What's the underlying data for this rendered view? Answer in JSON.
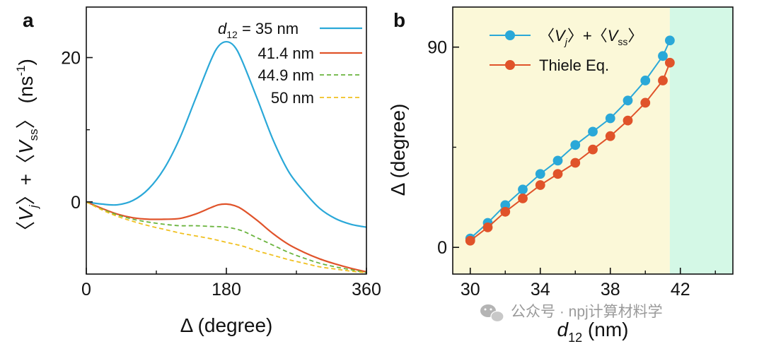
{
  "chart_data": [
    {
      "panel_label": "a",
      "type": "line",
      "xlabel": "Δ (degree)",
      "ylabel_parts": {
        "open": "〈",
        "v": "V",
        "j": "j",
        "mid": "〉+〈",
        "v2": "V",
        "ss": "ss",
        "close": "〉",
        "unit": " (ns",
        "exp": "-1",
        "end": ")"
      },
      "xlim": [
        0,
        360
      ],
      "ylim": [
        -10,
        27
      ],
      "xticks": [
        0,
        180,
        360
      ],
      "xtick_labels": [
        "0",
        "180",
        "360"
      ],
      "xminor": [
        90,
        270
      ],
      "yticks": [
        0,
        20
      ],
      "ytick_labels": [
        "0",
        "20"
      ],
      "yminor": [
        10
      ],
      "legend_prefix": "d",
      "legend_sub": "12",
      "legend_eq": " = 35 nm",
      "series": [
        {
          "name": "d12 = 35 nm",
          "label": "35 nm",
          "color": "#2aa8d8",
          "dash": "",
          "x": [
            0,
            20,
            40,
            60,
            80,
            100,
            120,
            140,
            160,
            170,
            180,
            190,
            200,
            220,
            240,
            260,
            280,
            300,
            320,
            340,
            360
          ],
          "y": [
            0,
            -0.3,
            -0.4,
            0.2,
            1.8,
            4.6,
            8.8,
            14.2,
            19.6,
            21.6,
            22.2,
            21.6,
            19.6,
            14.2,
            8.6,
            4.2,
            1.4,
            -0.9,
            -2.3,
            -3.1,
            -3.5
          ]
        },
        {
          "name": "41.4 nm",
          "label": "41.4 nm",
          "color": "#e0532a",
          "dash": "",
          "x": [
            0,
            20,
            40,
            60,
            80,
            100,
            120,
            140,
            160,
            170,
            180,
            190,
            200,
            220,
            240,
            260,
            280,
            300,
            320,
            340,
            360
          ],
          "y": [
            0,
            -0.9,
            -1.7,
            -2.2,
            -2.4,
            -2.4,
            -2.3,
            -1.7,
            -0.8,
            -0.4,
            -0.3,
            -0.5,
            -1.0,
            -2.6,
            -4.4,
            -5.9,
            -7.0,
            -7.9,
            -8.6,
            -9.2,
            -9.7
          ]
        },
        {
          "name": "44.9 nm",
          "label": "44.9 nm",
          "color": "#6ab43e",
          "dash": "6,4",
          "x": [
            0,
            20,
            40,
            60,
            80,
            100,
            120,
            140,
            160,
            180,
            200,
            220,
            240,
            260,
            280,
            300,
            320,
            340,
            360
          ],
          "y": [
            0,
            -1.0,
            -1.8,
            -2.4,
            -2.8,
            -3.1,
            -3.3,
            -3.3,
            -3.4,
            -3.5,
            -4.0,
            -5.0,
            -6.0,
            -7.0,
            -7.8,
            -8.5,
            -9.0,
            -9.4,
            -9.8
          ]
        },
        {
          "name": "50 nm",
          "label": "50 nm",
          "color": "#f0c020",
          "dash": "6,4",
          "x": [
            0,
            20,
            40,
            60,
            80,
            100,
            120,
            140,
            160,
            180,
            200,
            220,
            240,
            260,
            280,
            300,
            320,
            340,
            360
          ],
          "y": [
            0,
            -1.1,
            -2.0,
            -2.7,
            -3.3,
            -3.8,
            -4.3,
            -4.7,
            -5.1,
            -5.6,
            -6.1,
            -6.8,
            -7.4,
            -8.0,
            -8.5,
            -9.0,
            -9.3,
            -9.6,
            -9.8
          ]
        }
      ]
    },
    {
      "panel_label": "b",
      "type": "line",
      "xlabel_prefix": "d",
      "xlabel_sub": "12",
      "xlabel_unit": " (nm)",
      "ylabel": "Δ (degree)",
      "xlim": [
        29,
        45
      ],
      "ylim": [
        -12,
        108
      ],
      "xticks": [
        30,
        34,
        38,
        42
      ],
      "xtick_labels": [
        "30",
        "34",
        "38",
        "42"
      ],
      "xminor": [
        32,
        36,
        40,
        44
      ],
      "yticks": [
        0,
        90
      ],
      "ytick_labels": [
        "0",
        "90"
      ],
      "yminor": [
        45
      ],
      "regions": [
        {
          "name": "stable-region",
          "from": 29,
          "to": 41.4,
          "color": "#fbf8d8"
        },
        {
          "name": "unstable-region",
          "from": 41.4,
          "to": 45,
          "color": "#d4f8e6"
        }
      ],
      "legend_vj": {
        "open": "〈",
        "v": "V",
        "j": "j",
        "mid": "〉+〈",
        "v2": "V",
        "ss": "ss",
        "close": "〉"
      },
      "legend_thiele": "Thiele Eq.",
      "series": [
        {
          "name": "<Vj>+<Vss>",
          "color": "#2aa8d8",
          "x": [
            30,
            31,
            32,
            33,
            34,
            35,
            36,
            37,
            38,
            39,
            40,
            41,
            41.4
          ],
          "y": [
            4,
            11,
            19,
            26,
            33,
            39,
            46,
            52,
            58,
            66,
            75,
            86,
            93
          ]
        },
        {
          "name": "Thiele Eq.",
          "color": "#e0532a",
          "x": [
            30,
            31,
            32,
            33,
            34,
            35,
            36,
            37,
            38,
            39,
            40,
            41,
            41.4
          ],
          "y": [
            3,
            9,
            16,
            22,
            28,
            33,
            38,
            44,
            50,
            57,
            65,
            75,
            83
          ]
        }
      ]
    }
  ],
  "watermark": "公众号 · npj计算材料学",
  "icons": {
    "wechat": "wechat-icon"
  }
}
